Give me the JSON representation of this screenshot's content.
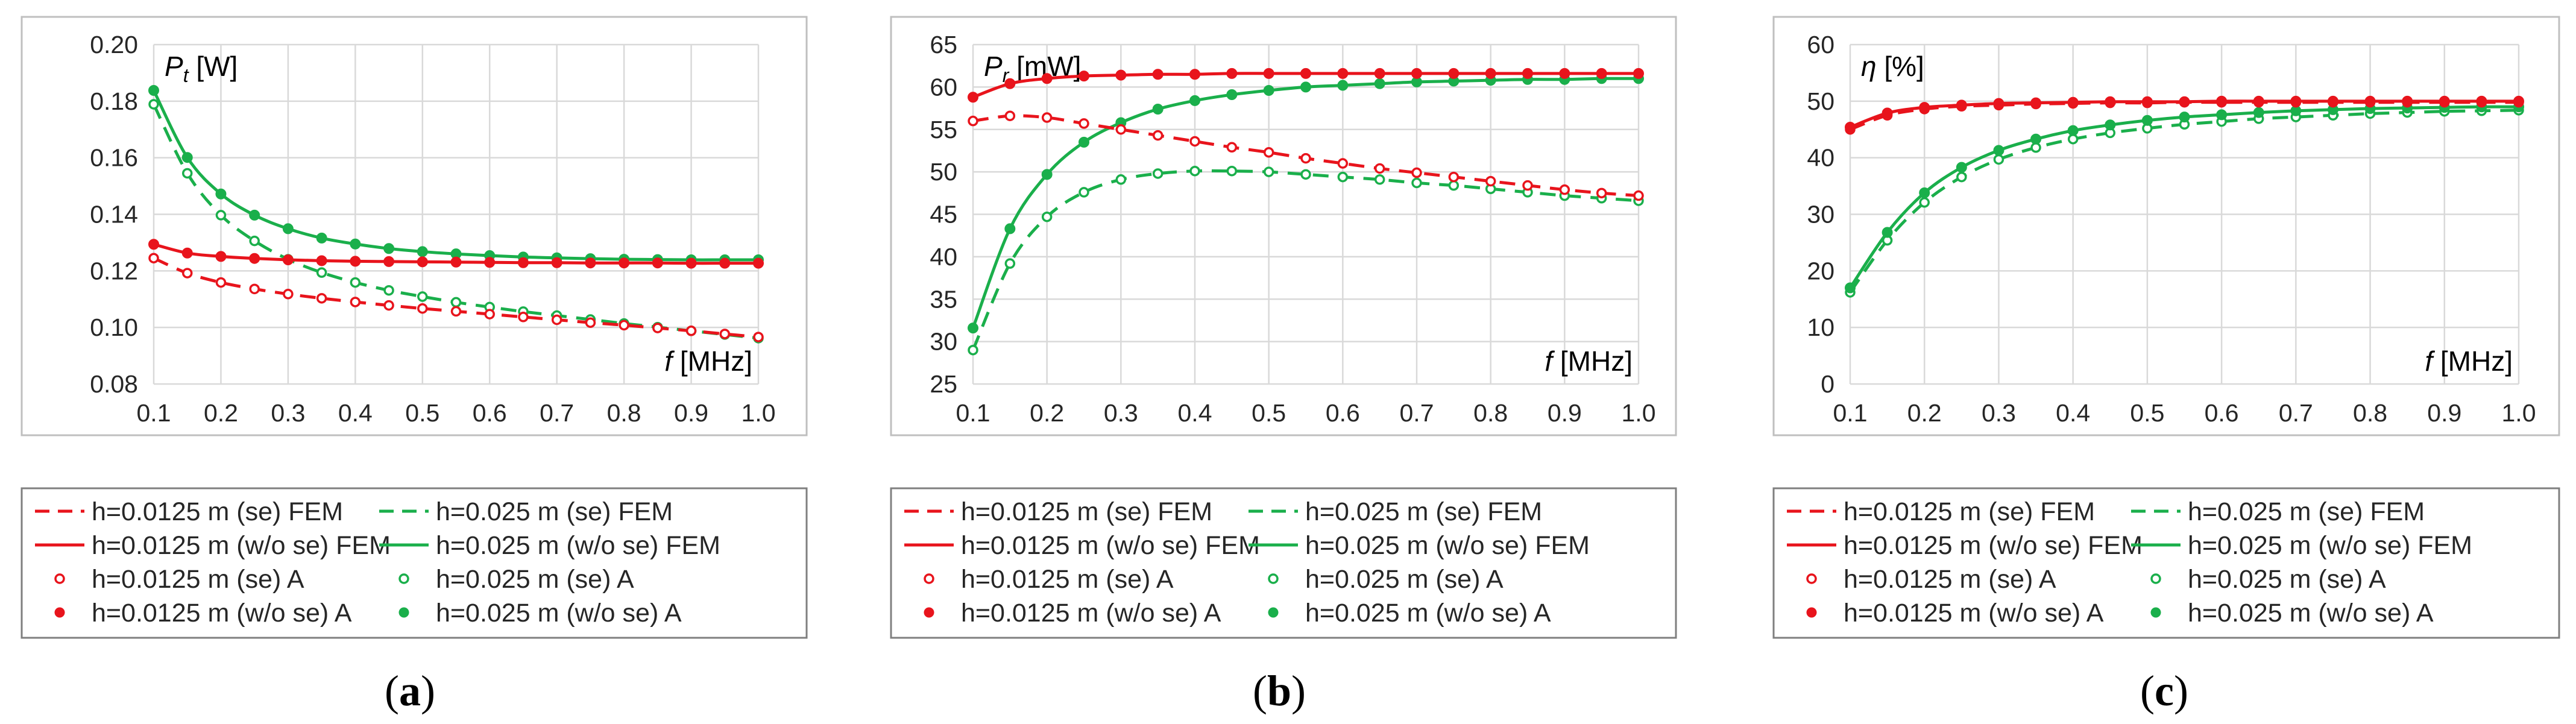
{
  "chart_data": [
    {
      "type": "line",
      "panel_label": "a",
      "ylabel": {
        "symbol": "P",
        "subscript": "t",
        "unit": " [W]"
      },
      "xlabel": {
        "symbol": "f",
        "unit": " [MHz]"
      },
      "ylim": [
        0.08,
        0.2
      ],
      "yticks": [
        "0.08",
        "0.10",
        "0.12",
        "0.14",
        "0.16",
        "0.18",
        "0.20"
      ],
      "xlim": [
        0.1,
        1.0
      ],
      "xticks": [
        "0.1",
        "0.2",
        "0.3",
        "0.4",
        "0.5",
        "0.6",
        "0.7",
        "0.8",
        "0.9",
        "1.0"
      ],
      "grid": true,
      "x": [
        0.1,
        0.15,
        0.2,
        0.25,
        0.3,
        0.35,
        0.4,
        0.45,
        0.5,
        0.55,
        0.6,
        0.65,
        0.7,
        0.75,
        0.8,
        0.85,
        0.9,
        0.95,
        1.0
      ],
      "series": [
        {
          "name": "h=0.0125 m (se)",
          "color": "#e8141c",
          "values": [
            0.1245,
            0.1192,
            0.1159,
            0.1136,
            0.1118,
            0.1103,
            0.109,
            0.1078,
            0.1067,
            0.1057,
            0.1047,
            0.1037,
            0.1027,
            0.1017,
            0.1008,
            0.0998,
            0.0988,
            0.0977,
            0.0966
          ]
        },
        {
          "name": "h=0.025 m (se)",
          "color": "#1aaf4b",
          "values": [
            0.1789,
            0.1545,
            0.1397,
            0.1306,
            0.1241,
            0.1194,
            0.1159,
            0.1131,
            0.1109,
            0.1089,
            0.1072,
            0.1056,
            0.1042,
            0.1028,
            0.1014,
            0.1001,
            0.0988,
            0.0975,
            0.0962
          ]
        },
        {
          "name": "h=0.0125 m (w/o se)",
          "color": "#e8141c",
          "values": [
            0.1294,
            0.1263,
            0.1251,
            0.1244,
            0.1239,
            0.1236,
            0.1234,
            0.1233,
            0.1232,
            0.1231,
            0.123,
            0.1229,
            0.1229,
            0.1228,
            0.1228,
            0.1228,
            0.1227,
            0.1227,
            0.1227
          ]
        },
        {
          "name": "h=0.025 m (w/o se)",
          "color": "#1aaf4b",
          "values": [
            0.1838,
            0.1601,
            0.1472,
            0.1397,
            0.1349,
            0.1316,
            0.1295,
            0.1279,
            0.1268,
            0.126,
            0.1254,
            0.1249,
            0.1246,
            0.1243,
            0.1241,
            0.124,
            0.1239,
            0.1239,
            0.1239
          ]
        }
      ]
    },
    {
      "type": "line",
      "panel_label": "b",
      "ylabel": {
        "symbol": "P",
        "subscript": "r",
        "unit": " [mW]"
      },
      "xlabel": {
        "symbol": "f",
        "unit": " [MHz]"
      },
      "ylim": [
        25,
        65
      ],
      "yticks": [
        "25",
        "30",
        "35",
        "40",
        "45",
        "50",
        "55",
        "60",
        "65"
      ],
      "xlim": [
        0.1,
        1.0
      ],
      "xticks": [
        "0.1",
        "0.2",
        "0.3",
        "0.4",
        "0.5",
        "0.6",
        "0.7",
        "0.8",
        "0.9",
        "1.0"
      ],
      "grid": true,
      "x": [
        0.1,
        0.15,
        0.2,
        0.25,
        0.3,
        0.35,
        0.4,
        0.45,
        0.5,
        0.55,
        0.6,
        0.65,
        0.7,
        0.75,
        0.8,
        0.85,
        0.9,
        0.95,
        1.0
      ],
      "series": [
        {
          "name": "h=0.0125 m (se)",
          "color": "#e8141c",
          "values": [
            56.0,
            56.6,
            56.4,
            55.7,
            55.0,
            54.3,
            53.6,
            52.9,
            52.3,
            51.6,
            51.0,
            50.4,
            49.9,
            49.4,
            48.9,
            48.4,
            47.9,
            47.5,
            47.2
          ]
        },
        {
          "name": "h=0.025 m (se)",
          "color": "#1aaf4b",
          "values": [
            29.0,
            39.2,
            44.7,
            47.6,
            49.1,
            49.8,
            50.1,
            50.1,
            50.0,
            49.7,
            49.4,
            49.1,
            48.7,
            48.4,
            48.0,
            47.6,
            47.2,
            46.9,
            46.6
          ]
        },
        {
          "name": "h=0.0125 m (w/o se)",
          "color": "#e8141c",
          "values": [
            58.8,
            60.4,
            61.0,
            61.3,
            61.4,
            61.5,
            61.5,
            61.6,
            61.6,
            61.6,
            61.6,
            61.6,
            61.6,
            61.6,
            61.6,
            61.6,
            61.6,
            61.6,
            61.6
          ]
        },
        {
          "name": "h=0.025 m (w/o se)",
          "color": "#1aaf4b",
          "values": [
            31.6,
            43.3,
            49.7,
            53.5,
            55.8,
            57.4,
            58.4,
            59.1,
            59.6,
            60.0,
            60.2,
            60.4,
            60.6,
            60.7,
            60.8,
            60.9,
            60.9,
            61.0,
            61.0
          ]
        }
      ]
    },
    {
      "type": "line",
      "panel_label": "c",
      "ylabel": {
        "symbol": "η",
        "subscript": "",
        "unit": " [%]"
      },
      "xlabel": {
        "symbol": "f",
        "unit": " [MHz]"
      },
      "ylim": [
        0,
        60
      ],
      "yticks": [
        "0",
        "10",
        "20",
        "30",
        "40",
        "50",
        "60"
      ],
      "xlim": [
        0.1,
        1.0
      ],
      "xticks": [
        "0.1",
        "0.2",
        "0.3",
        "0.4",
        "0.5",
        "0.6",
        "0.7",
        "0.8",
        "0.9",
        "1.0"
      ],
      "grid": true,
      "x": [
        0.1,
        0.15,
        0.2,
        0.25,
        0.3,
        0.35,
        0.4,
        0.45,
        0.5,
        0.55,
        0.6,
        0.65,
        0.7,
        0.75,
        0.8,
        0.85,
        0.9,
        0.95,
        1.0
      ],
      "series": [
        {
          "name": "h=0.0125 m (se)",
          "color": "#e8141c",
          "values": [
            45.0,
            47.5,
            48.6,
            49.1,
            49.3,
            49.5,
            49.6,
            49.7,
            49.7,
            49.8,
            49.8,
            49.8,
            49.8,
            49.8,
            49.8,
            49.8,
            49.8,
            49.8,
            49.8
          ]
        },
        {
          "name": "h=0.025 m (se)",
          "color": "#1aaf4b",
          "values": [
            16.2,
            25.4,
            32.1,
            36.6,
            39.7,
            41.8,
            43.3,
            44.4,
            45.2,
            45.9,
            46.4,
            46.9,
            47.2,
            47.5,
            47.8,
            48.0,
            48.2,
            48.3,
            48.4
          ]
        },
        {
          "name": "h=0.0125 m (w/o se)",
          "color": "#e8141c",
          "values": [
            45.4,
            47.9,
            48.9,
            49.3,
            49.6,
            49.7,
            49.8,
            49.9,
            49.9,
            49.9,
            50.0,
            50.0,
            50.0,
            50.0,
            50.0,
            50.0,
            50.0,
            50.0,
            50.0
          ]
        },
        {
          "name": "h=0.025 m (w/o se)",
          "color": "#1aaf4b",
          "values": [
            17.0,
            26.8,
            33.8,
            38.3,
            41.3,
            43.3,
            44.8,
            45.8,
            46.6,
            47.2,
            47.6,
            48.0,
            48.3,
            48.5,
            48.7,
            48.8,
            48.9,
            49.0,
            49.0
          ]
        }
      ]
    }
  ],
  "legend": {
    "items": [
      {
        "label": "h=0.0125 m (se) FEM",
        "color": "#e8141c",
        "kind": "dashed"
      },
      {
        "label": "h=0.025 m (se) FEM",
        "color": "#1aaf4b",
        "kind": "dashed"
      },
      {
        "label": "h=0.0125 m (w/o se) FEM",
        "color": "#e8141c",
        "kind": "solid"
      },
      {
        "label": "h=0.025 m (w/o se) FEM",
        "color": "#1aaf4b",
        "kind": "solid"
      },
      {
        "label": "h=0.0125 m (se) A",
        "color": "#e8141c",
        "kind": "open"
      },
      {
        "label": "h=0.025 m (se) A",
        "color": "#1aaf4b",
        "kind": "open"
      },
      {
        "label": "h=0.0125 m (w/o se) A",
        "color": "#e8141c",
        "kind": "filled"
      },
      {
        "label": "h=0.025 m (w/o se) A",
        "color": "#1aaf4b",
        "kind": "filled"
      }
    ]
  },
  "colors": {
    "red": "#e8141c",
    "green": "#1aaf4b",
    "grid": "#d9d9d9",
    "frame": "#bfbfbf",
    "legend_frame": "#7f7f7f"
  }
}
